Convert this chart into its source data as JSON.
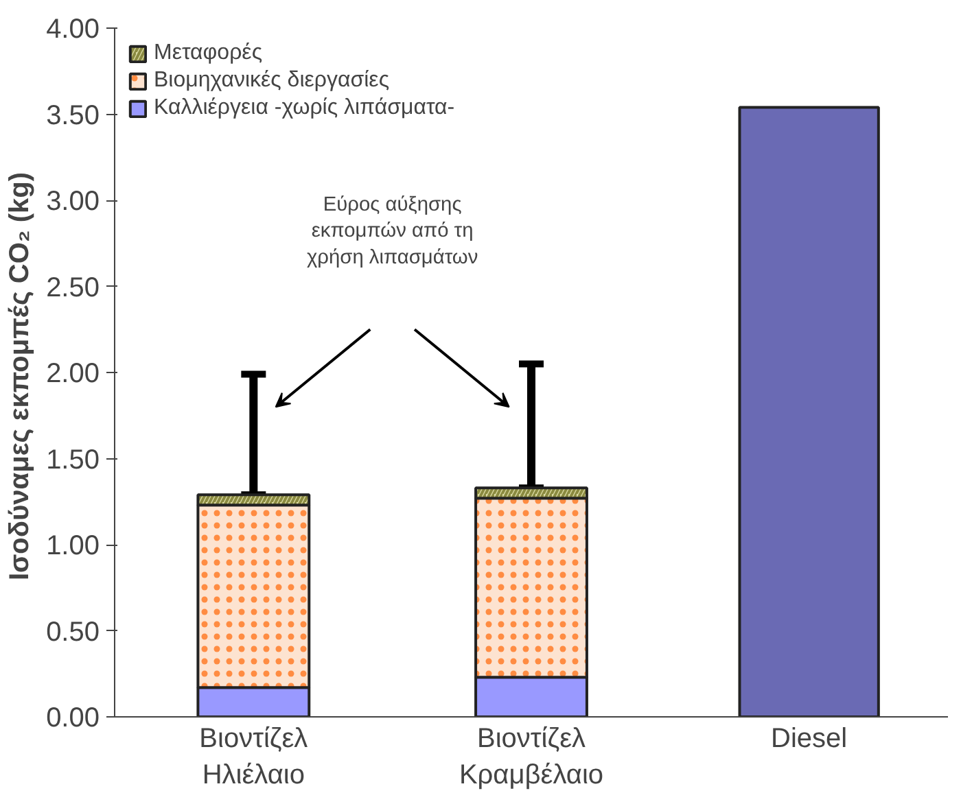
{
  "chart_data": {
    "type": "bar",
    "stacked": true,
    "ylabel": "Ισοδύναμες εκπομπές CO₂  (kg)",
    "categories": [
      "Βιοντίζελ\nΗλιέλαιο",
      "Βιοντίζελ\nΚραμβέλαιο",
      "Diesel"
    ],
    "series": [
      {
        "name": "Καλλιέργεια -χωρίς λιπάσματα-",
        "color": "#9999ff",
        "values": [
          0.17,
          0.23,
          null
        ]
      },
      {
        "name": "Βιομηχανικές διεργασίες",
        "color": "#fde3d0",
        "values": [
          1.06,
          1.04,
          null
        ]
      },
      {
        "name": "Μεταφορές",
        "color": "#d8d8a0",
        "values": [
          0.06,
          0.06,
          null
        ],
        "errors": [
          [
            1.29,
            1.99
          ],
          [
            1.33,
            2.05
          ],
          null
        ]
      },
      {
        "color": "#6a6ab4",
        "values": [
          null,
          null,
          3.54
        ]
      }
    ],
    "ylim": [
      0,
      4
    ],
    "yticks": [
      {
        "value": 0,
        "label": "0.00"
      },
      {
        "value": 0.5,
        "label": "0.50"
      },
      {
        "value": 1,
        "label": "1.00"
      },
      {
        "value": 1.5,
        "label": "1.50"
      },
      {
        "value": 2,
        "label": "2.00"
      },
      {
        "value": 2.5,
        "label": "2.50"
      },
      {
        "value": 3,
        "label": "3.00"
      },
      {
        "value": 3.5,
        "label": "3.50"
      },
      {
        "value": 4,
        "label": "4.00"
      }
    ],
    "annotations": [
      {
        "text": "Εύρος αύξησης\nεκπομπών από τη\nχρήση λιπασμάτων"
      }
    ],
    "legend": "top left",
    "grid": false
  }
}
